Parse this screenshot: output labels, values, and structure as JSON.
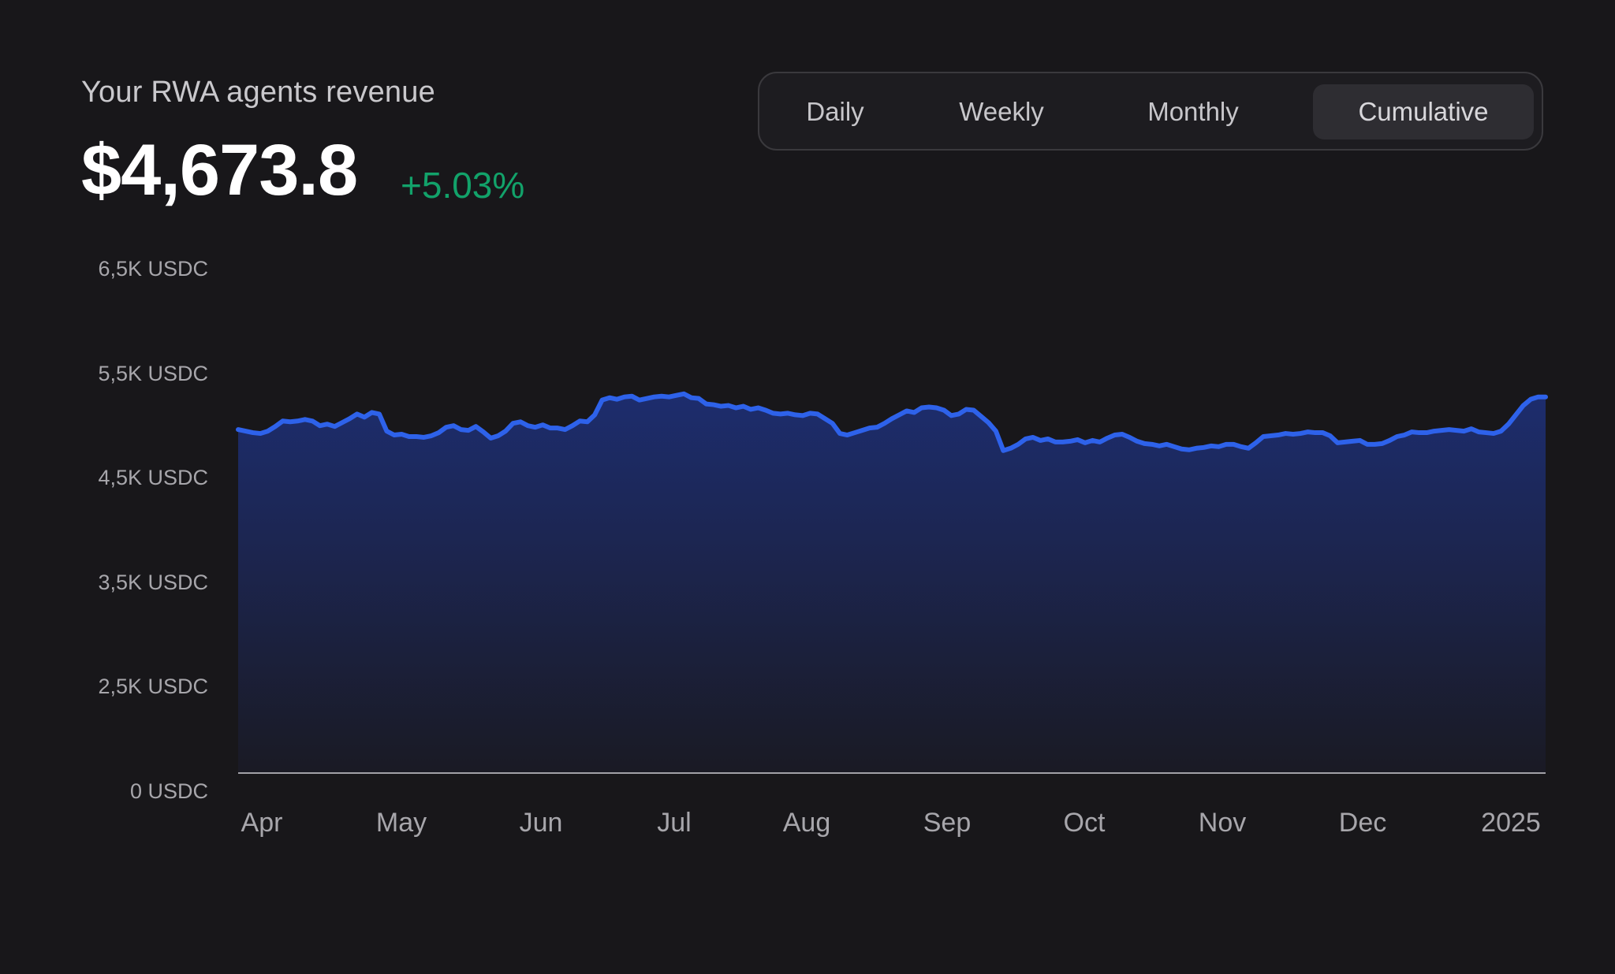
{
  "header": {
    "title": "Your RWA agents revenue",
    "value": "$4,673.8",
    "change": "+5.03%"
  },
  "tabs": [
    {
      "label": "Daily",
      "active": false
    },
    {
      "label": "Weekly",
      "active": false
    },
    {
      "label": "Monthly",
      "active": false
    },
    {
      "label": "Cumulative",
      "active": true
    }
  ],
  "colors": {
    "line": "#2e62ea",
    "fill_top": "#1d2d6e",
    "background": "#18171a",
    "positive": "#12a26a"
  },
  "chart_data": {
    "type": "area",
    "y_tick_labels": [
      "6,5K USDC",
      "5,5K USDC",
      "4,5K USDC",
      "3,5K USDC",
      "2,5K USDC",
      "0 USDC"
    ],
    "x_tick_labels": [
      "Apr",
      "May",
      "Jun",
      "Jul",
      "Aug",
      "Sep",
      "Oct",
      "Nov",
      "Dec",
      "2025"
    ],
    "series": [
      {
        "values": [
          4420,
          4400,
          4380,
          4370,
          4400,
          4460,
          4530,
          4520,
          4530,
          4550,
          4530,
          4470,
          4490,
          4460,
          4510,
          4560,
          4620,
          4580,
          4640,
          4620,
          4400,
          4350,
          4360,
          4330,
          4330,
          4320,
          4340,
          4380,
          4450,
          4470,
          4420,
          4410,
          4460,
          4390,
          4310,
          4340,
          4400,
          4500,
          4520,
          4470,
          4450,
          4480,
          4440,
          4440,
          4420,
          4470,
          4530,
          4520,
          4610,
          4800,
          4830,
          4810,
          4840,
          4850,
          4800,
          4820,
          4840,
          4850,
          4840,
          4860,
          4880,
          4830,
          4820,
          4750,
          4740,
          4720,
          4730,
          4700,
          4720,
          4680,
          4700,
          4670,
          4630,
          4620,
          4630,
          4610,
          4600,
          4630,
          4620,
          4560,
          4500,
          4370,
          4350,
          4380,
          4410,
          4440,
          4450,
          4500,
          4560,
          4610,
          4660,
          4640,
          4700,
          4710,
          4700,
          4670,
          4600,
          4620,
          4680,
          4670,
          4590,
          4510,
          4400,
          4150,
          4180,
          4230,
          4300,
          4320,
          4280,
          4300,
          4260,
          4260,
          4270,
          4290,
          4250,
          4280,
          4260,
          4310,
          4350,
          4360,
          4320,
          4270,
          4240,
          4230,
          4210,
          4230,
          4200,
          4170,
          4160,
          4180,
          4190,
          4210,
          4200,
          4230,
          4230,
          4200,
          4180,
          4250,
          4330,
          4340,
          4350,
          4370,
          4360,
          4370,
          4390,
          4380,
          4380,
          4340,
          4250,
          4260,
          4270,
          4280,
          4230,
          4230,
          4240,
          4280,
          4330,
          4350,
          4390,
          4380,
          4380,
          4400,
          4410,
          4420,
          4410,
          4400,
          4430,
          4390,
          4380,
          4370,
          4400,
          4490,
          4610,
          4730,
          4810,
          4840,
          4840
        ]
      }
    ],
    "ylim": [
      0,
      6500
    ],
    "grid": false
  }
}
